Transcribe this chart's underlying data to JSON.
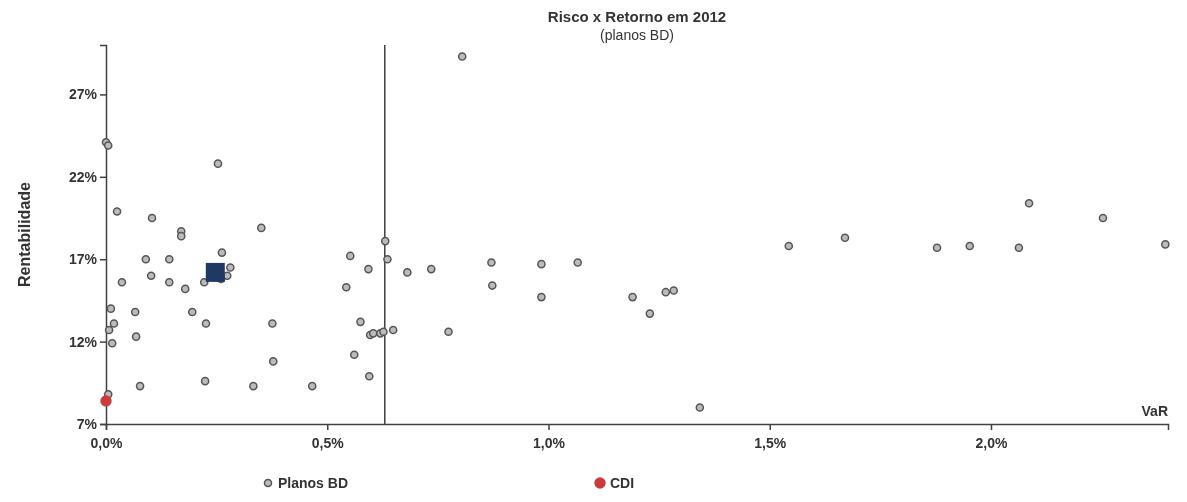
{
  "chart_data": {
    "type": "scatter",
    "title": "Risco x Retorno em 2012",
    "subtitle": "(planos BD)",
    "xlabel": "VaR",
    "ylabel": "Rentabilidade",
    "xlim": [
      0,
      2.4
    ],
    "xticks": [
      {
        "value": 0,
        "label": "0,0%"
      },
      {
        "value": 0.5,
        "label": "0,5%"
      },
      {
        "value": 1,
        "label": "1,0%"
      },
      {
        "value": 1.5,
        "label": "1,5%"
      },
      {
        "value": 2,
        "label": "2,0%"
      }
    ],
    "ylim": [
      7,
      30
    ],
    "yticks": [
      {
        "value": 7,
        "label": "7%"
      },
      {
        "value": 12,
        "label": "12%"
      },
      {
        "value": 17,
        "label": "17%"
      },
      {
        "value": 22,
        "label": "22%"
      },
      {
        "value": 27,
        "label": "27%"
      }
    ],
    "grid": false,
    "legend": "bottom",
    "ref_lines": [
      {
        "axis": "x",
        "value": 0.63,
        "color": "#404040"
      }
    ],
    "series": [
      {
        "name": "Planos BD",
        "color": "#555555",
        "marker": "circle",
        "x": [
          0,
          0.005,
          0.253,
          0.025,
          0.104,
          0.17,
          0.17,
          0.351,
          0.262,
          0.09,
          0.143,
          0.281,
          0.274,
          0.26,
          0.036,
          0.102,
          0.143,
          0.222,
          0.179,
          0.011,
          0.066,
          0.195,
          0.018,
          0.007,
          0.226,
          0.068,
          0.014,
          0.077,
          0.224,
          0.333,
          0.466,
          0.376,
          0.378,
          0.005,
          0.805,
          0.631,
          0.636,
          0.552,
          0.593,
          0.681,
          0.735,
          0.543,
          0.871,
          0.873,
          0.984,
          0.984,
          1.066,
          1.19,
          1.229,
          1.265,
          1.283,
          0.575,
          0.597,
          0.604,
          0.62,
          0.627,
          0.649,
          0.774,
          0.561,
          0.595,
          1.342,
          1.543,
          1.67,
          1.878,
          1.952,
          2.063,
          2.086,
          2.253,
          2.394
        ],
        "values": [
          24.1,
          23.9,
          22.8,
          19.9,
          19.5,
          18.7,
          18.4,
          18.9,
          17.4,
          17.0,
          17.0,
          16.5,
          16.0,
          15.8,
          15.6,
          16.0,
          15.6,
          15.6,
          15.2,
          14.0,
          13.8,
          13.8,
          13.1,
          12.7,
          13.1,
          12.3,
          11.9,
          9.3,
          9.6,
          9.3,
          9.3,
          13.1,
          10.8,
          8.8,
          29.3,
          18.1,
          17.0,
          17.2,
          16.4,
          16.2,
          16.4,
          15.3,
          16.8,
          15.4,
          16.7,
          14.7,
          16.8,
          14.7,
          13.7,
          15.0,
          15.1,
          13.2,
          12.4,
          12.5,
          12.5,
          12.6,
          12.7,
          12.6,
          11.2,
          9.9,
          8.0,
          17.8,
          18.3,
          17.7,
          17.8,
          17.7,
          20.4,
          19.5,
          17.9
        ]
      },
      {
        "name": "CDI",
        "color": "#cc3b3b",
        "marker": "circle",
        "x": [
          0
        ],
        "values": [
          8.4
        ]
      },
      {
        "color": "#1f3864",
        "marker": "square",
        "x": [
          0.247
        ],
        "values": [
          16.2
        ]
      }
    ]
  }
}
